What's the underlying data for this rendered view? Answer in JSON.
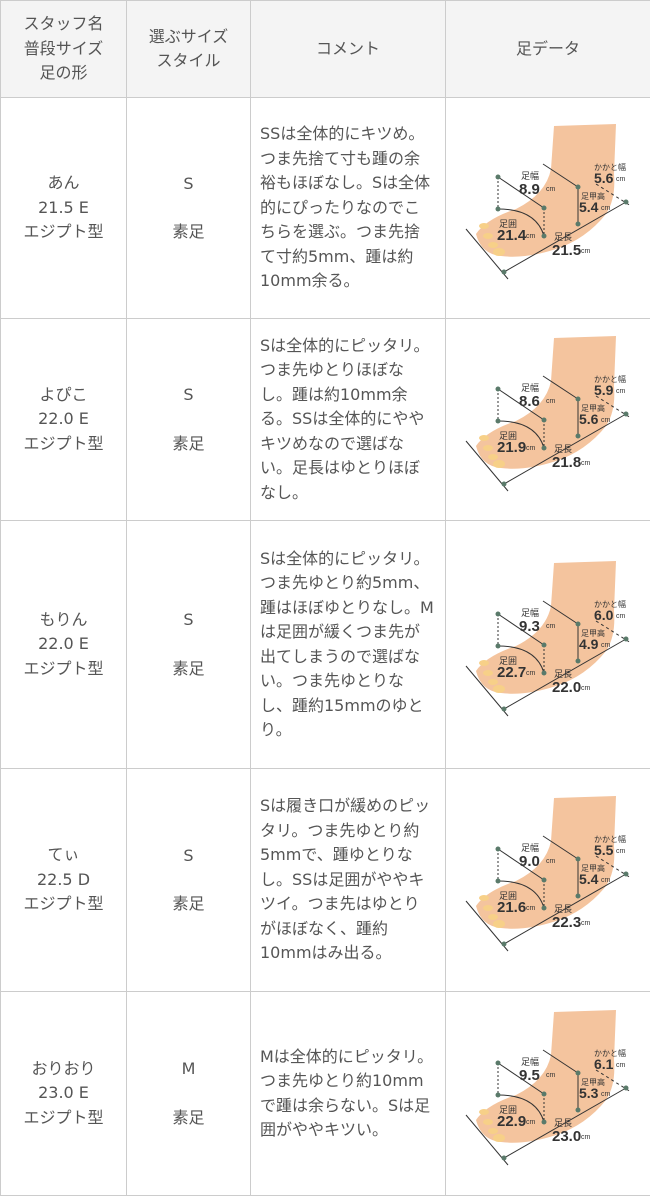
{
  "header": {
    "col1": [
      "スタッフ名",
      "普段サイズ",
      "足の形"
    ],
    "col2": [
      "選ぶサイズ",
      "スタイル"
    ],
    "col3": "コメント",
    "col4": "足データ"
  },
  "foot_labels": {
    "width": "足幅",
    "heel": "かかと幅",
    "instep": "足甲高",
    "girth": "足囲",
    "length": "足長",
    "unit": "cm"
  },
  "rows": [
    {
      "name": "あん",
      "size": "21.5 E",
      "shape": "エジプト型",
      "choice": "S",
      "style": "素足",
      "comment": "SSは全体的にキツめ。つま先捨て寸も踵の余裕もほぼなし。Sは全体的にぴったりなのでこちらを選ぶ。つま先捨て寸約5mm、踵は約10mm余る。",
      "foot": {
        "width": "8.9",
        "heel": "5.6",
        "instep": "5.4",
        "girth": "21.4",
        "length": "21.5"
      }
    },
    {
      "name": "よぴこ",
      "size": "22.0 E",
      "shape": "エジプト型",
      "choice": "S",
      "style": "素足",
      "comment": "Sは全体的にピッタリ。つま先ゆとりほぼなし。踵は約10mm余る。SSは全体的にややキツめなので選ばない。足長はゆとりほぼなし。",
      "foot": {
        "width": "8.6",
        "heel": "5.9",
        "instep": "5.6",
        "girth": "21.9",
        "length": "21.8"
      }
    },
    {
      "name": "もりん",
      "size": "22.0 E",
      "shape": "エジプト型",
      "choice": "S",
      "style": "素足",
      "comment": "Sは全体的にピッタリ。つま先ゆとり約5mm、踵はほぼゆとりなし。Mは足囲が緩くつま先が出てしまうので選ばない。つま先ゆとりなし、踵約15mmのゆとり。",
      "foot": {
        "width": "9.3",
        "heel": "6.0",
        "instep": "4.9",
        "girth": "22.7",
        "length": "22.0"
      }
    },
    {
      "name": "てぃ",
      "size": "22.5 D",
      "shape": "エジプト型",
      "choice": "S",
      "style": "素足",
      "comment": "Sは履き口が緩めのピッタリ。つま先ゆとり約5mmで、踵ゆとりなし。SSは足囲がややキツイ。つま先はゆとりがほぼなく、踵約10mmはみ出る。",
      "foot": {
        "width": "9.0",
        "heel": "5.5",
        "instep": "5.4",
        "girth": "21.6",
        "length": "22.3"
      }
    },
    {
      "name": "おりおり",
      "size": "23.0 E",
      "shape": "エジプト型",
      "choice": "M",
      "style": "素足",
      "comment": "Mは全体的にピッタリ。つま先ゆとり約10mmで踵は余らない。Sは足囲がややキツい。",
      "foot": {
        "width": "9.5",
        "heel": "6.1",
        "instep": "5.3",
        "girth": "22.9",
        "length": "23.0"
      }
    }
  ]
}
